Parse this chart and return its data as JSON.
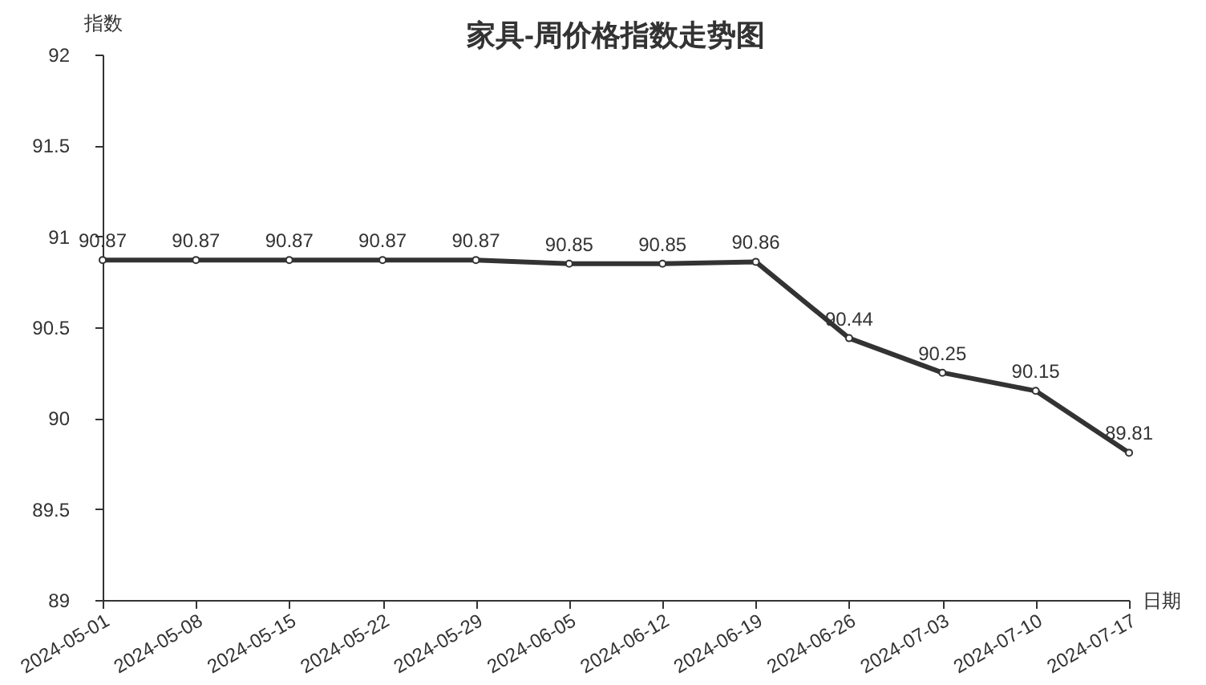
{
  "chart_data": {
    "type": "line",
    "title": "家具-周价格指数走势图",
    "xlabel": "日期",
    "ylabel": "指数",
    "categories": [
      "2024-05-01",
      "2024-05-08",
      "2024-05-15",
      "2024-05-22",
      "2024-05-29",
      "2024-06-05",
      "2024-06-12",
      "2024-06-19",
      "2024-06-26",
      "2024-07-03",
      "2024-07-10",
      "2024-07-17"
    ],
    "series": [
      {
        "color": "#333333",
        "values": [
          90.87,
          90.87,
          90.87,
          90.87,
          90.87,
          90.85,
          90.85,
          90.86,
          90.44,
          90.25,
          90.15,
          89.81
        ]
      }
    ],
    "ylim": [
      89,
      92
    ],
    "yticks": [
      89,
      89.5,
      90,
      90.5,
      91,
      91.5,
      92
    ],
    "grid": false,
    "marker": "circle",
    "line_style": "solid",
    "data_labels": true
  }
}
